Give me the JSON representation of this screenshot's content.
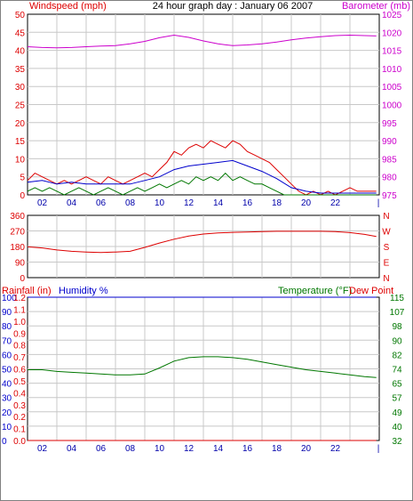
{
  "title": "24 hour graph day : January 06 2007",
  "colors": {
    "wind_axis": "#dd0000",
    "baro_axis": "#cc00cc",
    "dir_axis": "#dd0000",
    "rain_axis": "#dd0000",
    "humidity_axis": "#0000cc",
    "temp_axis": "#007700",
    "dew_axis": "#dd0000",
    "x_ticks": "#0000aa",
    "grid": "#c8c8c8",
    "frame": "#000000"
  },
  "chart_data": [
    {
      "type": "line",
      "left_label": "Windspeed (mph)",
      "right_label": "Barometer (mb)",
      "x_ticks": [
        "02",
        "04",
        "06",
        "08",
        "10",
        "12",
        "14",
        "16",
        "18",
        "20",
        "22",
        "|"
      ],
      "xlim": [
        0,
        24
      ],
      "ylim_left": [
        0,
        50
      ],
      "left_ticks": [
        "0",
        "5",
        "10",
        "15",
        "20",
        "25",
        "30",
        "35",
        "40",
        "45",
        "50"
      ],
      "ylim_right": [
        975,
        1025
      ],
      "right_ticks": [
        "975",
        "980",
        "985",
        "990",
        "995",
        "1000",
        "1005",
        "1010",
        "1015",
        "1020",
        "1025"
      ],
      "series": [
        {
          "axis": "right",
          "color": "#cc00cc",
          "values": [
            [
              0,
              1016
            ],
            [
              1,
              1015.8
            ],
            [
              2,
              1015.7
            ],
            [
              3,
              1015.8
            ],
            [
              4,
              1016
            ],
            [
              5,
              1016.2
            ],
            [
              6,
              1016.3
            ],
            [
              7,
              1016.8
            ],
            [
              8,
              1017.5
            ],
            [
              9,
              1018.5
            ],
            [
              10,
              1019.2
            ],
            [
              11,
              1018.6
            ],
            [
              12,
              1017.6
            ],
            [
              13,
              1016.8
            ],
            [
              14,
              1016.3
            ],
            [
              15,
              1016.5
            ],
            [
              16,
              1016.8
            ],
            [
              17,
              1017.3
            ],
            [
              18,
              1017.9
            ],
            [
              19,
              1018.4
            ],
            [
              20,
              1018.8
            ],
            [
              21,
              1019.1
            ],
            [
              22,
              1019.2
            ],
            [
              23,
              1019.1
            ],
            [
              23.8,
              1019.0
            ]
          ]
        },
        {
          "axis": "left",
          "color": "#dd0000",
          "values": [
            [
              0,
              4
            ],
            [
              0.5,
              6
            ],
            [
              1,
              5
            ],
            [
              1.5,
              4
            ],
            [
              2,
              3
            ],
            [
              2.5,
              4
            ],
            [
              3,
              3
            ],
            [
              3.5,
              4
            ],
            [
              4,
              5
            ],
            [
              4.5,
              4
            ],
            [
              5,
              3
            ],
            [
              5.5,
              5
            ],
            [
              6,
              4
            ],
            [
              6.5,
              3
            ],
            [
              7,
              4
            ],
            [
              7.5,
              5
            ],
            [
              8,
              6
            ],
            [
              8.5,
              5
            ],
            [
              9,
              7
            ],
            [
              9.5,
              9
            ],
            [
              10,
              12
            ],
            [
              10.5,
              11
            ],
            [
              11,
              13
            ],
            [
              11.5,
              14
            ],
            [
              12,
              13
            ],
            [
              12.5,
              15
            ],
            [
              13,
              14
            ],
            [
              13.5,
              13
            ],
            [
              14,
              15
            ],
            [
              14.5,
              14
            ],
            [
              15,
              12
            ],
            [
              15.5,
              11
            ],
            [
              16,
              10
            ],
            [
              16.5,
              9
            ],
            [
              17,
              7
            ],
            [
              17.5,
              5
            ],
            [
              18,
              3
            ],
            [
              18.5,
              1
            ],
            [
              19,
              0
            ],
            [
              19.5,
              1
            ],
            [
              20,
              0
            ],
            [
              20.5,
              1
            ],
            [
              21,
              0
            ],
            [
              21.5,
              1
            ],
            [
              22,
              2
            ],
            [
              22.5,
              1
            ],
            [
              23,
              1
            ],
            [
              23.8,
              1
            ]
          ]
        },
        {
          "axis": "left",
          "color": "#0000cc",
          "values": [
            [
              0,
              3.5
            ],
            [
              1,
              4
            ],
            [
              2,
              3
            ],
            [
              3,
              3.5
            ],
            [
              4,
              3
            ],
            [
              5,
              3
            ],
            [
              6,
              3
            ],
            [
              7,
              3
            ],
            [
              8,
              4
            ],
            [
              9,
              5
            ],
            [
              10,
              7
            ],
            [
              11,
              8
            ],
            [
              12,
              8.5
            ],
            [
              13,
              9
            ],
            [
              14,
              9.5
            ],
            [
              15,
              8
            ],
            [
              16,
              6.5
            ],
            [
              17,
              4.5
            ],
            [
              18,
              2
            ],
            [
              19,
              1
            ],
            [
              20,
              0.5
            ],
            [
              21,
              0.5
            ],
            [
              22,
              0.5
            ],
            [
              23,
              0.5
            ],
            [
              23.8,
              0.5
            ]
          ]
        },
        {
          "axis": "left",
          "color": "#007700",
          "values": [
            [
              0,
              1
            ],
            [
              0.5,
              2
            ],
            [
              1,
              1
            ],
            [
              1.5,
              2
            ],
            [
              2,
              1
            ],
            [
              2.5,
              0
            ],
            [
              3,
              1
            ],
            [
              3.5,
              2
            ],
            [
              4,
              1
            ],
            [
              4.5,
              0
            ],
            [
              5,
              1
            ],
            [
              5.5,
              2
            ],
            [
              6,
              1
            ],
            [
              6.5,
              0
            ],
            [
              7,
              1
            ],
            [
              7.5,
              2
            ],
            [
              8,
              1
            ],
            [
              8.5,
              2
            ],
            [
              9,
              3
            ],
            [
              9.5,
              2
            ],
            [
              10,
              3
            ],
            [
              10.5,
              4
            ],
            [
              11,
              3
            ],
            [
              11.5,
              5
            ],
            [
              12,
              4
            ],
            [
              12.5,
              5
            ],
            [
              13,
              4
            ],
            [
              13.5,
              6
            ],
            [
              14,
              4
            ],
            [
              14.5,
              5
            ],
            [
              15,
              4
            ],
            [
              15.5,
              3
            ],
            [
              16,
              3
            ],
            [
              16.5,
              2
            ],
            [
              17,
              1
            ],
            [
              17.5,
              0
            ],
            [
              18,
              0
            ],
            [
              23.8,
              0
            ]
          ]
        }
      ]
    },
    {
      "type": "line",
      "x_ticks": [
        "02",
        "04",
        "06",
        "08",
        "10",
        "12",
        "14",
        "16",
        "18",
        "20",
        "22",
        "|"
      ],
      "xlim": [
        0,
        24
      ],
      "ylim_left": [
        0,
        360
      ],
      "left_ticks": [
        "0",
        "90",
        "180",
        "270",
        "360"
      ],
      "right_ticks": [
        "N",
        "E",
        "S",
        "W",
        "N"
      ],
      "series": [
        {
          "axis": "left",
          "color": "#dd0000",
          "values": [
            [
              0,
              178
            ],
            [
              1,
              172
            ],
            [
              2,
              160
            ],
            [
              3,
              152
            ],
            [
              4,
              148
            ],
            [
              5,
              145
            ],
            [
              6,
              148
            ],
            [
              7,
              152
            ],
            [
              8,
              175
            ],
            [
              9,
              200
            ],
            [
              10,
              222
            ],
            [
              11,
              240
            ],
            [
              12,
              252
            ],
            [
              13,
              258
            ],
            [
              14,
              262
            ],
            [
              15,
              264
            ],
            [
              16,
              266
            ],
            [
              17,
              268
            ],
            [
              18,
              268
            ],
            [
              19,
              268
            ],
            [
              20,
              268
            ],
            [
              21,
              266
            ],
            [
              22,
              260
            ],
            [
              23,
              250
            ],
            [
              23.8,
              238
            ]
          ]
        }
      ]
    },
    {
      "type": "line",
      "left_label": "Rainfall (in)",
      "left_label_2": "Humidity %",
      "right_label": "Temperature (°F)",
      "right_label_2": "Dew Point",
      "x_ticks": [
        "02",
        "04",
        "06",
        "08",
        "10",
        "12",
        "14",
        "16",
        "18",
        "20",
        "22",
        "|"
      ],
      "xlim": [
        0,
        24
      ],
      "rain_ticks": [
        "0.0",
        "0.1",
        "0.2",
        "0.3",
        "0.4",
        "0.5",
        "0.6",
        "0.7",
        "0.8",
        "0.9",
        "1.0",
        "1.1",
        "1.2"
      ],
      "humidity_ticks": [
        "0",
        "10",
        "20",
        "30",
        "40",
        "50",
        "60",
        "70",
        "80",
        "90",
        "100"
      ],
      "temp_ticks": [
        "32",
        "40",
        "49",
        "57",
        "65",
        "74",
        "82",
        "90",
        "98",
        "107",
        "115"
      ],
      "ylim_humidity": [
        0,
        100
      ],
      "ylim_temp": [
        32,
        115
      ],
      "ylim_rain": [
        0,
        1.2
      ],
      "series": [
        {
          "axis": "humidity",
          "color": "#0000cc",
          "values": [
            [
              0,
              100
            ],
            [
              23.8,
              100
            ]
          ]
        },
        {
          "axis": "temp",
          "color": "#007700",
          "values": [
            [
              0,
              73
            ],
            [
              1,
              73
            ],
            [
              2,
              72
            ],
            [
              3,
              71.5
            ],
            [
              4,
              71
            ],
            [
              5,
              70.5
            ],
            [
              6,
              70
            ],
            [
              7,
              70
            ],
            [
              8,
              70.5
            ],
            [
              9,
              74
            ],
            [
              10,
              78
            ],
            [
              11,
              80
            ],
            [
              12,
              80.5
            ],
            [
              13,
              80.5
            ],
            [
              14,
              80
            ],
            [
              15,
              79
            ],
            [
              16,
              77.5
            ],
            [
              17,
              76
            ],
            [
              18,
              74.5
            ],
            [
              19,
              73
            ],
            [
              20,
              72
            ],
            [
              21,
              71
            ],
            [
              22,
              70
            ],
            [
              23,
              69
            ],
            [
              23.8,
              68.5
            ]
          ]
        },
        {
          "axis": "rain",
          "color": "#dd0000",
          "values": [
            [
              0,
              0
            ],
            [
              23.8,
              0
            ]
          ]
        }
      ]
    }
  ]
}
